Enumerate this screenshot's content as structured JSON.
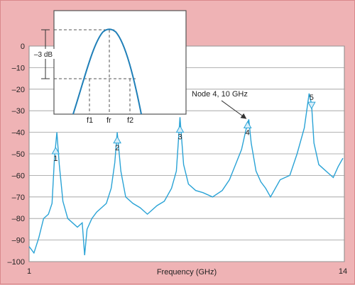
{
  "chart_data": {
    "type": "line",
    "xlabel": "Frequency (GHz)",
    "xlim": [
      1,
      14
    ],
    "ylim": [
      -100,
      0
    ],
    "x_tick_labels": [
      "1",
      "14"
    ],
    "y_ticks": [
      0,
      -10,
      -20,
      -30,
      -40,
      -50,
      -60,
      -70,
      -80,
      -90,
      -100
    ],
    "y_tick_labels": [
      "0",
      "–10",
      "–20",
      "–30",
      "–40",
      "–50",
      "–60",
      "–70",
      "–80",
      "–90",
      "–100"
    ],
    "grid": true,
    "line_color": "#2aa3d6",
    "series": [
      {
        "x": [
          1.0,
          1.2,
          1.4,
          1.6,
          1.8,
          1.95,
          2.05,
          2.15,
          2.25,
          2.4,
          2.6,
          2.8,
          3.0,
          3.2,
          3.3,
          3.4,
          3.6,
          3.8,
          4.0,
          4.2,
          4.4,
          4.55,
          4.65,
          4.8,
          5.0,
          5.3,
          5.6,
          5.9,
          6.3,
          6.6,
          6.9,
          7.1,
          7.25,
          7.4,
          7.6,
          7.9,
          8.2,
          8.6,
          9.0,
          9.3,
          9.55,
          9.8,
          10.0,
          10.1,
          10.2,
          10.4,
          10.6,
          10.8,
          11.0,
          11.4,
          11.8,
          12.1,
          12.4,
          12.6,
          12.7,
          12.8,
          13.0,
          13.2,
          13.4,
          13.6,
          13.8,
          14.0
        ],
        "y": [
          -93,
          -96,
          -89,
          -80,
          -78,
          -73,
          -52,
          -40,
          -55,
          -72,
          -80,
          -82,
          -84,
          -82,
          -97,
          -85,
          -80,
          -77,
          -75,
          -73,
          -66,
          -54,
          -40,
          -58,
          -70,
          -73,
          -75,
          -78,
          -74,
          -72,
          -66,
          -58,
          -33,
          -55,
          -64,
          -67,
          -68,
          -70,
          -67,
          -62,
          -55,
          -48,
          -38,
          -34,
          -45,
          -58,
          -63,
          -66,
          -70,
          -62,
          -60,
          -50,
          -38,
          -22,
          -27,
          -45,
          -55,
          -57,
          -59,
          -61,
          -56,
          -52
        ]
      }
    ],
    "peak_markers": [
      {
        "label": "1",
        "x": 2.1,
        "y": -50
      },
      {
        "label": "2",
        "x": 4.65,
        "y": -45
      },
      {
        "label": "3",
        "x": 7.25,
        "y": -40
      },
      {
        "label": "4",
        "x": 10.05,
        "y": -38
      },
      {
        "label": "5",
        "x": 12.7,
        "y": -29
      }
    ],
    "annotation": {
      "text": "Node 4, 10 GHz",
      "x": 9.5,
      "y": -24
    },
    "inset": {
      "level_label": "–3 dB",
      "x_labels": [
        "f1",
        "fr",
        "f2"
      ]
    }
  }
}
